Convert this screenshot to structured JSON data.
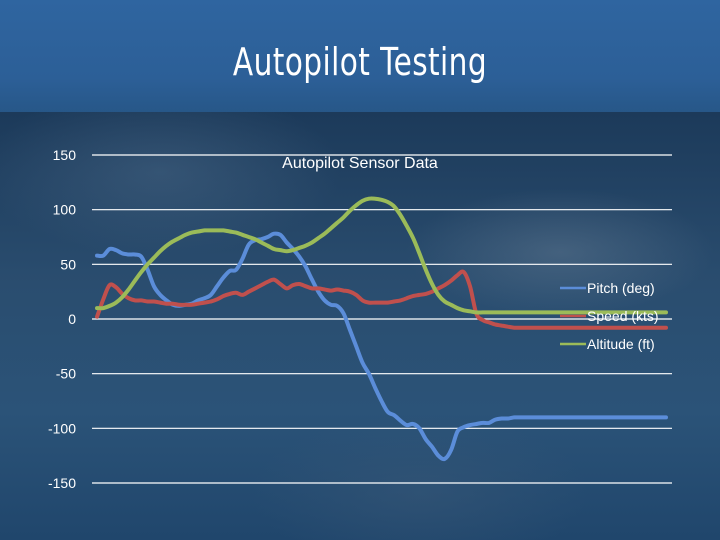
{
  "slide": {
    "title": "Autopilot Testing"
  },
  "chart_data": {
    "type": "line",
    "title": "Autopilot Sensor Data",
    "ylim": [
      -150,
      150
    ],
    "yticks": [
      150,
      100,
      50,
      0,
      -50,
      -100,
      -150
    ],
    "grid": true,
    "legend_position": "right",
    "x": [
      0,
      1,
      2,
      3,
      4,
      5,
      6,
      7,
      8,
      9,
      10,
      11,
      12,
      13,
      14,
      15,
      16,
      17,
      18,
      19,
      20,
      21,
      22,
      23,
      24,
      25,
      26,
      27,
      28,
      29,
      30,
      31,
      32,
      33,
      34,
      35,
      36,
      37,
      38,
      39,
      40,
      41,
      42,
      43,
      44,
      45,
      46,
      47,
      48,
      49,
      50,
      51,
      52,
      53,
      54,
      55,
      56,
      57,
      58,
      59,
      60,
      61,
      62,
      63,
      64,
      65,
      66,
      67,
      68,
      69,
      70,
      71,
      72,
      73,
      74,
      75,
      76,
      77,
      78,
      79,
      80,
      81,
      82,
      83,
      84,
      85,
      86,
      87,
      88,
      89,
      90
    ],
    "series": [
      {
        "name": "Pitch (deg)",
        "color": "#5b8dd9",
        "values": [
          58,
          58,
          64,
          63,
          60,
          59,
          59,
          57,
          45,
          30,
          22,
          17,
          13,
          12,
          13,
          14,
          17,
          19,
          22,
          30,
          38,
          44,
          45,
          55,
          68,
          72,
          73,
          75,
          78,
          77,
          70,
          64,
          57,
          48,
          36,
          25,
          17,
          13,
          12,
          5,
          -10,
          -25,
          -40,
          -50,
          -63,
          -75,
          -85,
          -88,
          -93,
          -97,
          -96,
          -100,
          -110,
          -117,
          -125,
          -128,
          -120,
          -103,
          -99,
          -97,
          -96,
          -95,
          -95,
          -92,
          -91,
          -91,
          -90,
          -90,
          -90,
          -90,
          -90,
          -90,
          -90,
          -90,
          -90,
          -90,
          -90,
          -90,
          -90,
          -90,
          -90,
          -90,
          -90,
          -90,
          -90,
          -90,
          -90,
          -90,
          -90,
          -90,
          -90
        ]
      },
      {
        "name": "Speed (kts)",
        "color": "#c0504d",
        "values": [
          2,
          18,
          31,
          29,
          23,
          19,
          17,
          17,
          16,
          16,
          15,
          14,
          14,
          13,
          13,
          13,
          14,
          15,
          16,
          18,
          21,
          23,
          24,
          22,
          25,
          28,
          31,
          34,
          36,
          32,
          28,
          31,
          32,
          30,
          28,
          28,
          27,
          26,
          27,
          26,
          25,
          22,
          17,
          15,
          15,
          15,
          15,
          16,
          17,
          19,
          21,
          22,
          23,
          25,
          28,
          31,
          35,
          40,
          43,
          30,
          5,
          -1,
          -3,
          -5,
          -6,
          -7,
          -8,
          -8,
          -8,
          -8,
          -8,
          -8,
          -8,
          -8,
          -8,
          -8,
          -8,
          -8,
          -8,
          -8,
          -8,
          -8,
          -8,
          -8,
          -8,
          -8,
          -8,
          -8,
          -8,
          -8,
          -8
        ]
      },
      {
        "name": "Altitude (ft)",
        "color": "#9bbb59",
        "values": [
          10,
          10,
          12,
          15,
          20,
          27,
          35,
          43,
          50,
          56,
          62,
          67,
          71,
          74,
          77,
          79,
          80,
          81,
          81,
          81,
          81,
          80,
          79,
          77,
          75,
          73,
          70,
          67,
          64,
          63,
          62,
          63,
          65,
          67,
          70,
          74,
          78,
          83,
          88,
          93,
          99,
          104,
          108,
          110,
          110,
          109,
          107,
          103,
          95,
          85,
          74,
          60,
          45,
          32,
          22,
          16,
          13,
          10,
          8,
          7,
          6,
          6,
          6,
          6,
          6,
          6,
          6,
          6,
          6,
          6,
          6,
          6,
          6,
          6,
          6,
          6,
          6,
          6,
          6,
          6,
          6,
          6,
          6,
          6,
          6,
          6,
          6,
          6,
          6,
          6,
          6
        ]
      }
    ]
  }
}
